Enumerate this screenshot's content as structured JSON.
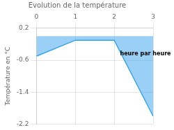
{
  "chart_data": {
    "type": "area",
    "title": "Evolution de la température",
    "y_label": "Température en °C",
    "x": [
      0,
      1,
      2,
      3
    ],
    "values": [
      -0.5,
      -0.1,
      -0.1,
      -2.0
    ],
    "xlim": [
      0,
      3
    ],
    "xticks": [
      0,
      1,
      2,
      3
    ],
    "ylim": [
      -2.2,
      0.2
    ],
    "yticks": [
      0.2,
      -0.6,
      -1.4,
      -2.2
    ],
    "grid": true,
    "annotations": [
      {
        "x": 2.15,
        "y": -0.45,
        "text": "heure par heure"
      }
    ]
  }
}
